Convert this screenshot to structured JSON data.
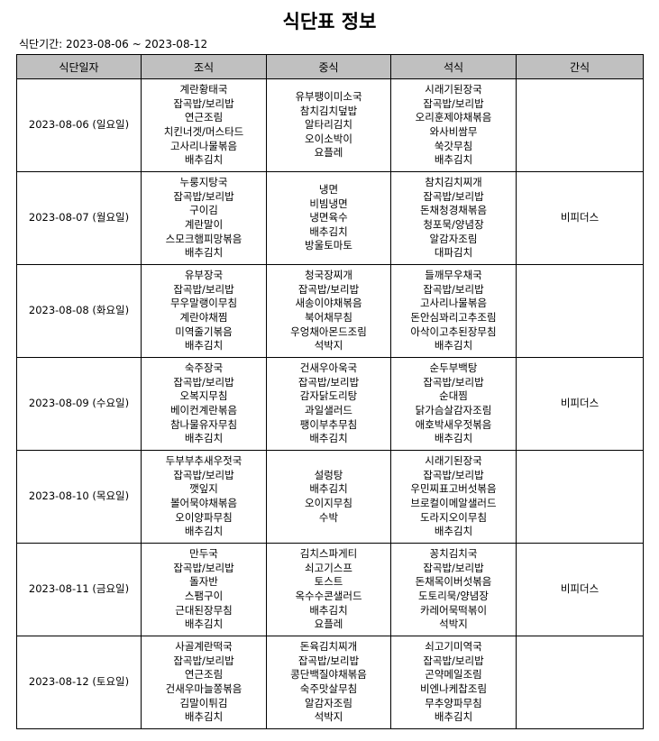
{
  "title": "식단표 정보",
  "period": "식단기간: 2023-08-06 ~ 2023-08-12",
  "headers": [
    "식단일자",
    "조식",
    "중식",
    "석식",
    "간식"
  ],
  "rows": [
    {
      "date": "2023-08-06 (일요일)",
      "breakfast": [
        "계란황태국",
        "잡곡밥/보리밥",
        "연근조림",
        "치킨너겟/머스타드",
        "고사리나물볶음",
        "배추김치"
      ],
      "lunch": [
        "유부팽이미소국",
        "참치김치덮밥",
        "알타리김치",
        "오이소박이",
        "요플레"
      ],
      "dinner": [
        "시래기된장국",
        "잡곡밥/보리밥",
        "오리훈제야채볶음",
        "와사비쌈무",
        "쑥갓무침",
        "배추김치"
      ],
      "snack": []
    },
    {
      "date": "2023-08-07 (월요일)",
      "breakfast": [
        "누룽지탕국",
        "잡곡밥/보리밥",
        "구이김",
        "계란말이",
        "스모크햄피망볶음",
        "배추김치"
      ],
      "lunch": [
        "냉면",
        "비빔냉면",
        "냉면육수",
        "배추김치",
        "방울토마토"
      ],
      "dinner": [
        "참치김치찌개",
        "잡곡밥/보리밥",
        "돈채청경채볶음",
        "청포묵/양념장",
        "알감자조림",
        "대파김치"
      ],
      "snack": [
        "비피더스"
      ]
    },
    {
      "date": "2023-08-08 (화요일)",
      "breakfast": [
        "유부장국",
        "잡곡밥/보리밥",
        "무우말랭이무침",
        "계란야채찜",
        "미역줄기볶음",
        "배추김치"
      ],
      "lunch": [
        "청국장찌개",
        "잡곡밥/보리밥",
        "새송이야채볶음",
        "북어채무침",
        "우엉채아몬드조림",
        "석박지"
      ],
      "dinner": [
        "들깨무우채국",
        "잡곡밥/보리밥",
        "고사리나물볶음",
        "돈안심꽈리고추조림",
        "아삭이고추된장무침",
        "배추김치"
      ],
      "snack": []
    },
    {
      "date": "2023-08-09 (수요일)",
      "breakfast": [
        "숙주장국",
        "잡곡밥/보리밥",
        "오복지무침",
        "베이컨계란볶음",
        "참나물유자무침",
        "배추김치"
      ],
      "lunch": [
        "건새우아욱국",
        "잡곡밥/보리밥",
        "감자닭도리탕",
        "과일샐러드",
        "팽이부추무침",
        "배추김치"
      ],
      "dinner": [
        "순두부백탕",
        "잡곡밥/보리밥",
        "순대찜",
        "닭가슴살감자조림",
        "애호박새우젓볶음",
        "배추김치"
      ],
      "snack": [
        "비피더스"
      ]
    },
    {
      "date": "2023-08-10 (목요일)",
      "breakfast": [
        "두부부추새우젓국",
        "잡곡밥/보리밥",
        "깻잎지",
        "볼어묵야채볶음",
        "오이양파무침",
        "배추김치"
      ],
      "lunch": [
        "설렁탕",
        "배추김치",
        "오이지무침",
        "수박"
      ],
      "dinner": [
        "시래기된장국",
        "잡곡밥/보리밥",
        "우민찌표고버섯볶음",
        "브로컬이메알샐러드",
        "도라지오이무침",
        "배추김치"
      ],
      "snack": []
    },
    {
      "date": "2023-08-11 (금요일)",
      "breakfast": [
        "만두국",
        "잡곡밥/보리밥",
        "돌자반",
        "스팸구이",
        "근대된장무침",
        "배추김치"
      ],
      "lunch": [
        "김치스파게티",
        "쇠고기스프",
        "토스트",
        "옥수수콘샐러드",
        "배추김치",
        "요플레"
      ],
      "dinner": [
        "꽁치김치국",
        "잡곡밥/보리밥",
        "돈채목이버섯볶음",
        "도토리묵/양념장",
        "카레어묵떡볶이",
        "석박지"
      ],
      "snack": [
        "비피더스"
      ]
    },
    {
      "date": "2023-08-12 (토요일)",
      "breakfast": [
        "사골계란떡국",
        "잡곡밥/보리밥",
        "연근조림",
        "건새우마늘쫑볶음",
        "김말이튀김",
        "배추김치"
      ],
      "lunch": [
        "돈육김치찌개",
        "잡곡밥/보리밥",
        "콩단백질야채볶음",
        "숙주맛살무침",
        "알감자조림",
        "석박지"
      ],
      "dinner": [
        "쇠고기미역국",
        "잡곡밥/보리밥",
        "곤약메일조림",
        "비엔나케찹조림",
        "무추양파무침",
        "배추김치"
      ],
      "snack": []
    }
  ]
}
